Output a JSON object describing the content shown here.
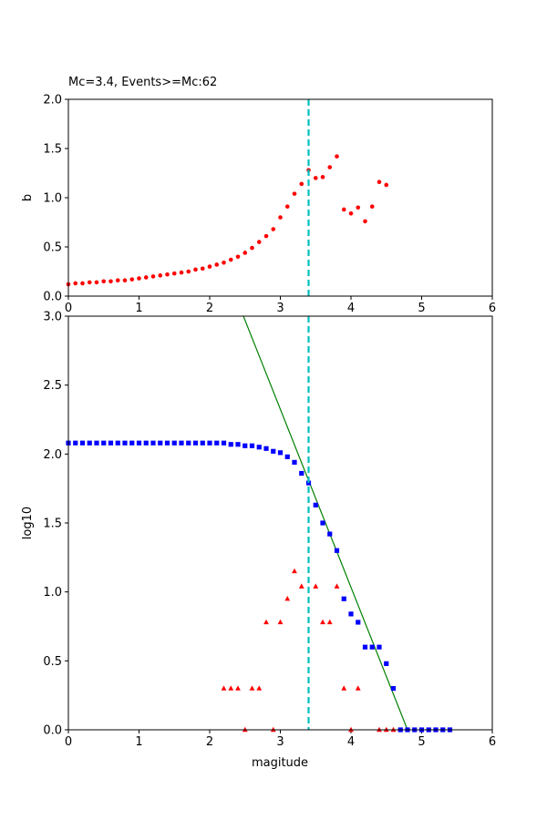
{
  "chart_data": [
    {
      "type": "scatter",
      "title": "Mc=3.4, Events>=Mc:62",
      "xlabel": "",
      "ylabel": "b",
      "xlim": [
        0,
        6
      ],
      "ylim": [
        0,
        2
      ],
      "xticks": [
        "0",
        "1",
        "2",
        "3",
        "4",
        "5",
        "6"
      ],
      "yticks": [
        "0.0",
        "0.5",
        "1.0",
        "1.5",
        "2.0"
      ],
      "grid": false,
      "mc_line": {
        "x": 3.4,
        "color": "#00bfbf",
        "style": "dashed"
      },
      "series": [
        {
          "marker": "circle",
          "color": "#ff0000",
          "x": [
            0.0,
            0.1,
            0.2,
            0.3,
            0.4,
            0.5,
            0.6,
            0.7,
            0.8,
            0.9,
            1.0,
            1.1,
            1.2,
            1.3,
            1.4,
            1.5,
            1.6,
            1.7,
            1.8,
            1.9,
            2.0,
            2.1,
            2.2,
            2.3,
            2.4,
            2.5,
            2.6,
            2.7,
            2.8,
            2.9,
            3.0,
            3.1,
            3.2,
            3.3,
            3.4,
            3.5,
            3.6,
            3.7,
            3.8,
            3.9,
            4.0,
            4.1,
            4.2,
            4.3,
            4.4,
            4.5
          ],
          "y": [
            0.12,
            0.13,
            0.13,
            0.14,
            0.14,
            0.15,
            0.15,
            0.16,
            0.16,
            0.17,
            0.18,
            0.19,
            0.2,
            0.21,
            0.22,
            0.23,
            0.24,
            0.25,
            0.27,
            0.28,
            0.3,
            0.32,
            0.34,
            0.37,
            0.4,
            0.44,
            0.49,
            0.55,
            0.61,
            0.68,
            0.8,
            0.91,
            1.04,
            1.14,
            1.28,
            1.2,
            1.21,
            1.31,
            1.42,
            0.88,
            0.84,
            0.9,
            0.76,
            0.91,
            1.16,
            1.13
          ]
        }
      ]
    },
    {
      "type": "scatter",
      "title": "",
      "xlabel": "magitude",
      "ylabel": "log10",
      "xlim": [
        0,
        6
      ],
      "ylim": [
        0,
        3
      ],
      "xticks": [
        "0",
        "1",
        "2",
        "3",
        "4",
        "5",
        "6"
      ],
      "yticks": [
        "0.0",
        "0.5",
        "1.0",
        "1.5",
        "2.0",
        "2.5",
        "3.0"
      ],
      "grid": false,
      "mc_line": {
        "x": 3.4,
        "color": "#00bfbf",
        "style": "dashed"
      },
      "fit_line": {
        "color": "#008000",
        "points": [
          [
            2.4,
            3.1
          ],
          [
            4.8,
            0.0
          ]
        ]
      },
      "series": [
        {
          "marker": "square",
          "color": "#0000ff",
          "x": [
            0.0,
            0.1,
            0.2,
            0.3,
            0.4,
            0.5,
            0.6,
            0.7,
            0.8,
            0.9,
            1.0,
            1.1,
            1.2,
            1.3,
            1.4,
            1.5,
            1.6,
            1.7,
            1.8,
            1.9,
            2.0,
            2.1,
            2.2,
            2.3,
            2.4,
            2.5,
            2.6,
            2.7,
            2.8,
            2.9,
            3.0,
            3.1,
            3.2,
            3.3,
            3.4,
            3.5,
            3.6,
            3.7,
            3.8,
            3.9,
            4.0,
            4.1,
            4.2,
            4.3,
            4.4,
            4.5,
            4.6,
            4.7,
            4.8,
            4.9,
            5.0,
            5.1,
            5.2,
            5.3,
            5.4
          ],
          "y": [
            2.08,
            2.08,
            2.08,
            2.08,
            2.08,
            2.08,
            2.08,
            2.08,
            2.08,
            2.08,
            2.08,
            2.08,
            2.08,
            2.08,
            2.08,
            2.08,
            2.08,
            2.08,
            2.08,
            2.08,
            2.08,
            2.08,
            2.08,
            2.07,
            2.07,
            2.06,
            2.06,
            2.05,
            2.04,
            2.02,
            2.01,
            1.98,
            1.94,
            1.86,
            1.79,
            1.63,
            1.5,
            1.42,
            1.3,
            0.95,
            0.84,
            0.78,
            0.6,
            0.6,
            0.6,
            0.48,
            0.3,
            0.0,
            0.0,
            0.0,
            0.0,
            0.0,
            0.0,
            0.0,
            0.0
          ]
        },
        {
          "marker": "triangle",
          "color": "#ff0000",
          "x": [
            2.2,
            2.3,
            2.4,
            2.5,
            2.6,
            2.7,
            2.8,
            2.9,
            3.0,
            3.1,
            3.2,
            3.3,
            3.5,
            3.6,
            3.7,
            3.8,
            3.9,
            4.0,
            4.1,
            4.4,
            4.5,
            4.6
          ],
          "y": [
            0.3,
            0.3,
            0.3,
            0.0,
            0.3,
            0.3,
            0.78,
            0.0,
            0.78,
            0.95,
            1.15,
            1.04,
            1.04,
            0.78,
            0.78,
            1.04,
            0.3,
            0.0,
            0.3,
            0.0,
            0.0,
            0.0
          ]
        }
      ]
    }
  ]
}
